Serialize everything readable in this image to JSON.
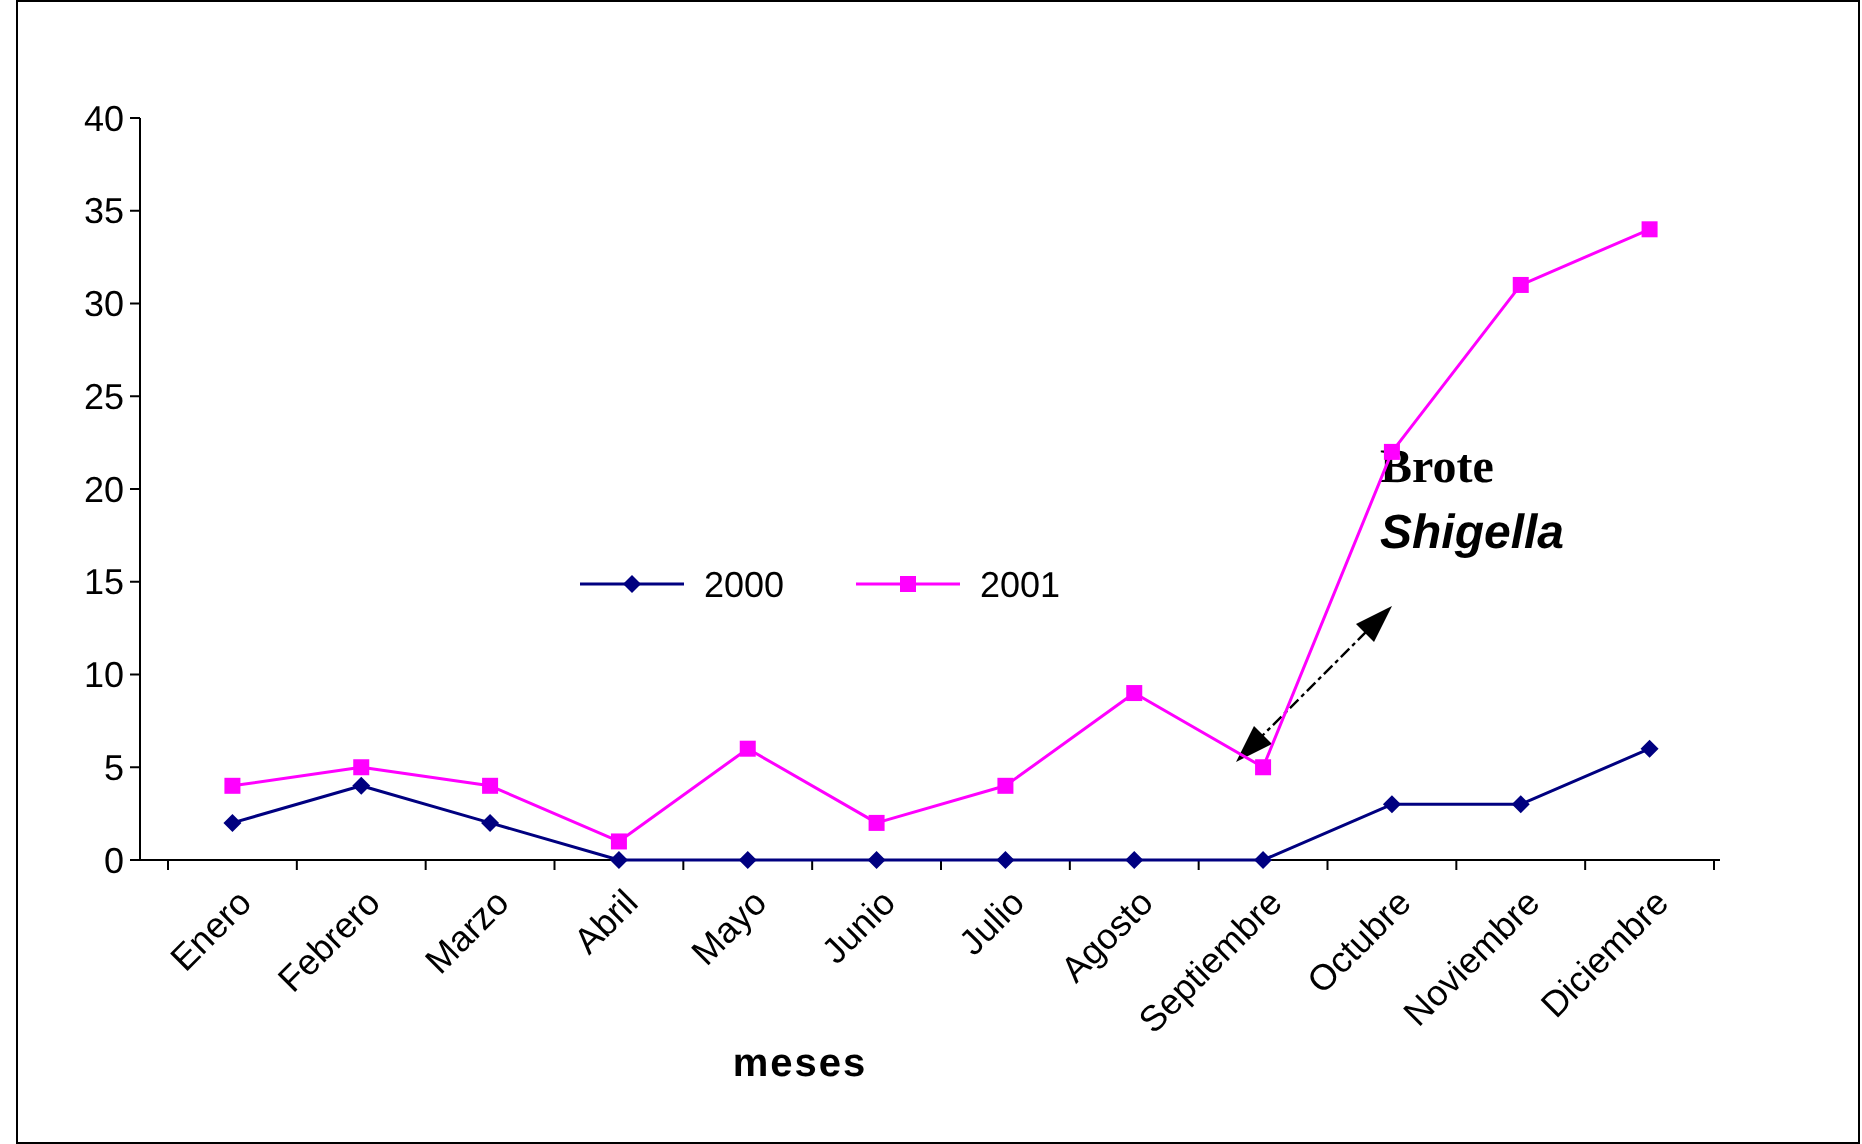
{
  "chart_data": {
    "type": "line",
    "xlabel": "meses",
    "categories": [
      "Enero",
      "Febrero",
      "Marzo",
      "Abril",
      "Mayo",
      "Junio",
      "Julio",
      "Agosto",
      "Septiembre",
      "Octubre",
      "Noviembre",
      "Diciembre"
    ],
    "series": [
      {
        "name": "2000",
        "color": "#000080",
        "marker": "diamond",
        "values": [
          2,
          4,
          2,
          0,
          0,
          0,
          0,
          0,
          0,
          3,
          3,
          6
        ]
      },
      {
        "name": "2001",
        "color": "#ff00ff",
        "marker": "square",
        "values": [
          4,
          5,
          4,
          1,
          6,
          2,
          4,
          9,
          5,
          22,
          31,
          34
        ]
      }
    ],
    "ylim": [
      0,
      40
    ],
    "yticks": [
      0,
      5,
      10,
      15,
      20,
      25,
      30,
      35,
      40
    ],
    "grid": false,
    "legend": "center",
    "line_style": "solid",
    "annotations": [
      "Brote Shigella"
    ]
  }
}
